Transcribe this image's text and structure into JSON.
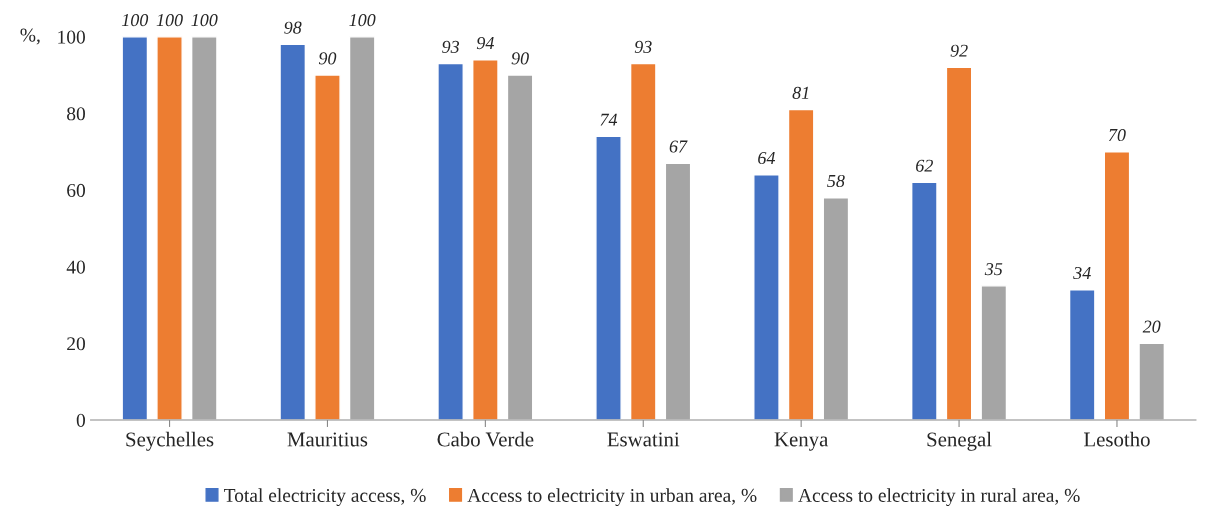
{
  "chart_data": {
    "type": "bar",
    "ylabel": "%,",
    "categories": [
      "Seychelles",
      "Mauritius",
      "Cabo Verde",
      "Eswatini",
      "Kenya",
      "Senegal",
      "Lesotho"
    ],
    "series": [
      {
        "name": "Total electricity access, %",
        "color": "#4472c4",
        "values": [
          100,
          98,
          93,
          74,
          64,
          62,
          34
        ]
      },
      {
        "name": "Access to electricity in urban area, %",
        "color": "#ed7d31",
        "values": [
          100,
          90,
          94,
          93,
          81,
          92,
          70
        ]
      },
      {
        "name": "Access to electricity in rural area, %",
        "color": "#a5a5a5",
        "values": [
          100,
          100,
          90,
          67,
          58,
          35,
          20
        ]
      }
    ],
    "ylim": [
      0,
      100
    ],
    "yticks": [
      0,
      20,
      40,
      60,
      80,
      100
    ],
    "grid": false,
    "legend": "bottom",
    "data_labels": true
  }
}
